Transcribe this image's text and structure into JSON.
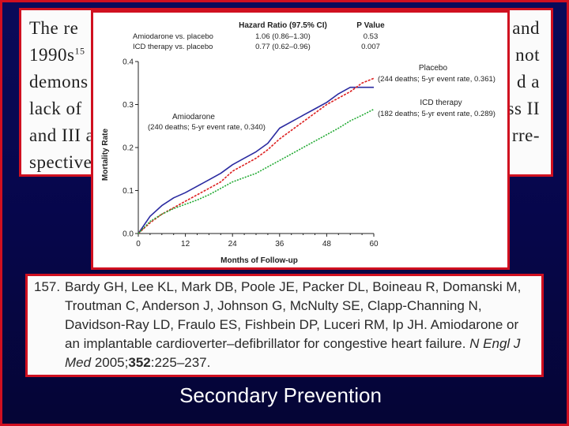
{
  "background_text": {
    "left_lines": [
      "The  re",
      "1990s",
      "demons",
      "lack of",
      "and III a",
      "spective"
    ],
    "superscript": "15",
    "right_lines": [
      "and",
      "not",
      "d  a",
      "ss II",
      "rre-"
    ]
  },
  "chart_data": {
    "type": "line",
    "legend_header": {
      "col1": "Hazard Ratio (97.5% CI)",
      "col2": "P Value"
    },
    "comparisons": [
      {
        "label": "Amiodarone vs. placebo",
        "hr": "1.06 (0.86–1.30)",
        "p": "0.53"
      },
      {
        "label": "ICD therapy vs. placebo",
        "hr": "0.77 (0.62–0.96)",
        "p": "0.007"
      }
    ],
    "xlabel": "Months of Follow-up",
    "ylabel": "Mortality Rate",
    "xlim": [
      0,
      60
    ],
    "ylim": [
      0,
      0.4
    ],
    "xticks": [
      0,
      12,
      24,
      36,
      48,
      60
    ],
    "xtick_labels": [
      "0",
      "12",
      "24",
      "36",
      "48",
      "60"
    ],
    "yticks": [
      0,
      0.1,
      0.2,
      0.3,
      0.4
    ],
    "ytick_labels": [
      "0.0",
      "0.1",
      "0.2",
      "0.3",
      "0.4"
    ],
    "series": [
      {
        "name": "Amiodarone",
        "note": "(240 deaths; 5-yr event rate, 0.340)",
        "color": "#2a2aa0",
        "x": [
          0,
          3,
          6,
          9,
          12,
          15,
          18,
          21,
          24,
          27,
          30,
          33,
          36,
          39,
          42,
          45,
          48,
          51,
          54,
          57,
          60
        ],
        "y": [
          0,
          0.04,
          0.065,
          0.083,
          0.095,
          0.11,
          0.125,
          0.14,
          0.16,
          0.175,
          0.19,
          0.21,
          0.245,
          0.26,
          0.275,
          0.29,
          0.305,
          0.325,
          0.34,
          0.34,
          0.34
        ]
      },
      {
        "name": "Placebo",
        "note": "(244 deaths; 5-yr event rate, 0.361)",
        "color": "#dd2020",
        "x": [
          0,
          3,
          6,
          9,
          12,
          15,
          18,
          21,
          24,
          27,
          30,
          33,
          36,
          39,
          42,
          45,
          48,
          51,
          54,
          57,
          60
        ],
        "y": [
          0,
          0.025,
          0.045,
          0.06,
          0.075,
          0.09,
          0.105,
          0.12,
          0.145,
          0.16,
          0.175,
          0.195,
          0.22,
          0.24,
          0.26,
          0.28,
          0.3,
          0.315,
          0.33,
          0.35,
          0.361
        ]
      },
      {
        "name": "ICD therapy",
        "note": "(182 deaths; 5-yr event rate, 0.289)",
        "color": "#22aa33",
        "x": [
          0,
          3,
          6,
          9,
          12,
          15,
          18,
          21,
          24,
          27,
          30,
          33,
          36,
          39,
          42,
          45,
          48,
          51,
          54,
          57,
          60
        ],
        "y": [
          0,
          0.028,
          0.045,
          0.058,
          0.068,
          0.078,
          0.09,
          0.105,
          0.12,
          0.13,
          0.14,
          0.155,
          0.17,
          0.185,
          0.2,
          0.215,
          0.23,
          0.245,
          0.262,
          0.275,
          0.289
        ]
      }
    ]
  },
  "reference": {
    "number": "157.",
    "lines": [
      "Bardy GH, Lee KL, Mark DB, Poole JE, Packer DL, Boineau R, Domanski M,",
      "Troutman C, Anderson J, Johnson G, McNulty SE, Clapp-Channing N,",
      "Davidson-Ray LD, Fraulo ES, Fishbein DP, Luceri RM, Ip JH. Amiodarone or",
      "an implantable cardioverter–defibrillator for congestive heart failure."
    ],
    "journal": "N Engl J",
    "journal2": "Med",
    "year": "2005;",
    "volume": "352",
    "pages": ":225–237."
  },
  "caption": "Secondary Prevention"
}
